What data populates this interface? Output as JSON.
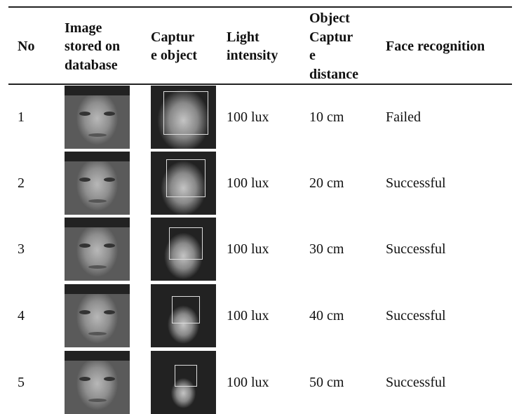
{
  "table": {
    "header": [
      [
        "No"
      ],
      [
        "Image",
        "stored on",
        "database"
      ],
      [
        "Captur",
        "e object"
      ],
      [
        "Light",
        "intensity"
      ],
      [
        "Object",
        "Captur",
        "e",
        "distance"
      ],
      [
        "Face recognition"
      ]
    ],
    "rows": [
      [
        "1",
        "100 lux",
        "10 cm",
        "Failed"
      ],
      [
        "2",
        "100 lux",
        "20 cm",
        "Successful"
      ],
      [
        "3",
        "100 lux",
        "30 cm",
        "Successful"
      ],
      [
        "4",
        "100 lux",
        "40 cm",
        "Successful"
      ],
      [
        "5",
        "100 lux",
        "50 cm",
        "Successful"
      ]
    ]
  }
}
